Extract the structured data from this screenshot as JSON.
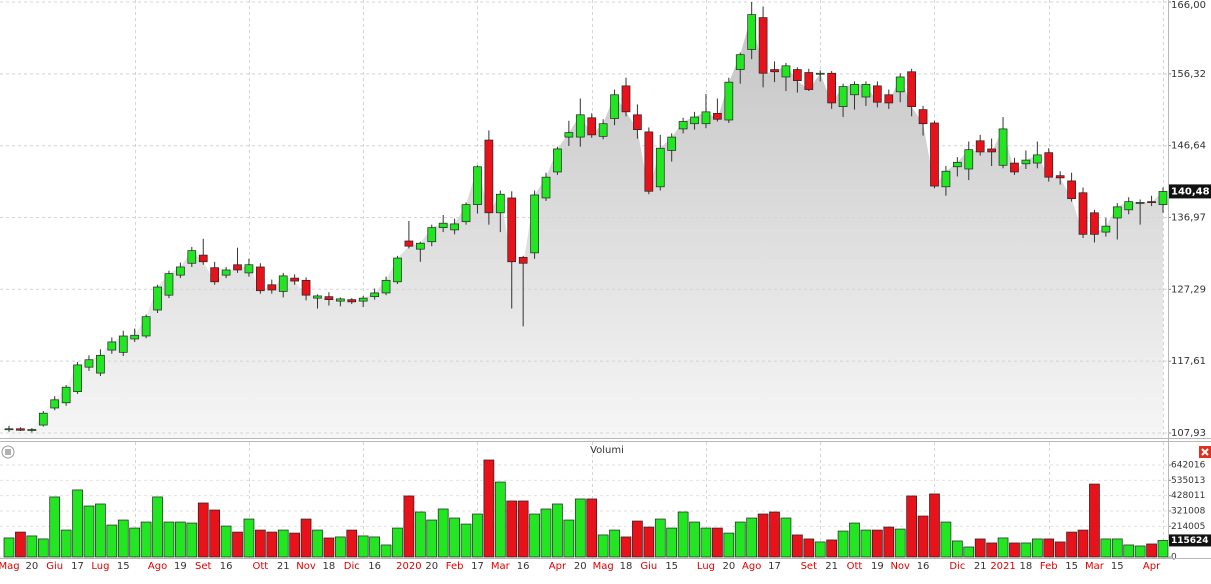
{
  "chart_data": [
    {
      "type": "candlestick",
      "open": [
        108.4,
        108.5,
        108.3,
        109.0,
        111.3,
        112.0,
        113.5,
        116.8,
        116.0,
        119.1,
        118.8,
        120.6,
        121.0,
        124.5,
        126.5,
        129.2,
        130.8,
        131.9,
        130.2,
        129.2,
        130.6,
        129.5,
        130.3,
        127.9,
        127.0,
        128.8,
        128.5,
        126.1,
        126.3,
        125.7,
        125.9,
        125.7,
        126.3,
        126.8,
        128.3,
        133.8,
        132.7,
        133.7,
        135.6,
        135.3,
        136.4,
        138.7,
        147.4,
        137.6,
        139.6,
        131.6,
        132.2,
        139.6,
        143.1,
        147.8,
        147.8,
        150.4,
        147.9,
        150.3,
        154.7,
        150.8,
        148.5,
        141.1,
        146.0,
        148.9,
        149.6,
        149.6,
        151.0,
        150.1,
        156.9,
        159.6,
        163.9,
        156.9,
        155.9,
        156.9,
        156.5,
        156.3,
        156.4,
        151.9,
        153.5,
        153.2,
        154.7,
        153.5,
        153.9,
        156.6,
        151.5,
        149.7,
        141.1,
        143.8,
        143.5,
        147.3,
        146.2,
        144.0,
        144.3,
        144.2,
        144.3,
        145.7,
        142.6,
        141.9,
        140.3,
        137.6,
        135.0,
        136.9,
        138.0,
        138.9,
        139.1,
        138.7
      ],
      "high": [
        108.9,
        108.7,
        108.6,
        110.9,
        112.9,
        114.4,
        117.5,
        118.4,
        119.2,
        120.8,
        121.7,
        122.0,
        123.9,
        127.9,
        129.8,
        130.9,
        133.0,
        134.1,
        131.0,
        130.3,
        132.9,
        131.4,
        130.8,
        128.6,
        129.5,
        129.3,
        128.9,
        126.6,
        126.9,
        126.2,
        126.1,
        126.4,
        127.4,
        129.0,
        131.8,
        136.5,
        133.7,
        136.0,
        137.3,
        136.8,
        139.0,
        144.0,
        148.7,
        140.6,
        140.5,
        131.8,
        140.6,
        143.0,
        146.5,
        150.0,
        153.0,
        151.0,
        150.2,
        154.2,
        155.8,
        152.2,
        149.1,
        148.1,
        148.3,
        150.4,
        151.2,
        153.6,
        153.0,
        155.8,
        159.2,
        166.0,
        165.4,
        158.0,
        157.8,
        157.2,
        157.0,
        156.8,
        156.7,
        155.0,
        155.3,
        155.3,
        155.3,
        154.2,
        156.4,
        157.0,
        152.0,
        150.0,
        143.9,
        145.1,
        147.2,
        148.1,
        147.6,
        150.5,
        145.0,
        146.0,
        147.2,
        146.3,
        143.2,
        143.0,
        141.0,
        138.0,
        136.9,
        138.9,
        139.7,
        139.4,
        139.9,
        141.0
      ],
      "low": [
        108.1,
        108.2,
        108.0,
        108.8,
        111.0,
        111.6,
        113.2,
        116.3,
        115.6,
        118.6,
        118.3,
        120.2,
        120.7,
        124.1,
        126.1,
        128.8,
        130.3,
        130.6,
        127.9,
        128.8,
        129.5,
        129.0,
        126.7,
        126.7,
        126.2,
        127.9,
        125.8,
        124.7,
        125.1,
        125.0,
        125.3,
        124.9,
        125.9,
        126.5,
        128.0,
        132.8,
        131.0,
        133.1,
        135.0,
        134.7,
        136.0,
        137.5,
        136.0,
        135.0,
        124.7,
        122.3,
        131.4,
        139.2,
        142.7,
        146.6,
        146.5,
        147.7,
        147.5,
        149.4,
        150.6,
        147.6,
        140.1,
        140.6,
        144.5,
        148.3,
        148.8,
        149.0,
        149.9,
        149.7,
        155.0,
        158.3,
        154.5,
        155.2,
        154.0,
        153.8,
        154.0,
        155.3,
        151.6,
        150.5,
        151.5,
        152.0,
        151.8,
        151.6,
        152.5,
        150.6,
        148.0,
        140.9,
        139.9,
        142.5,
        142.0,
        145.3,
        143.9,
        143.6,
        142.7,
        143.5,
        143.6,
        141.8,
        141.4,
        139.1,
        134.2,
        133.6,
        134.4,
        134.0,
        137.4,
        136.0,
        138.5,
        137.6
      ],
      "close": [
        108.5,
        108.3,
        108.4,
        110.6,
        112.4,
        114.1,
        117.1,
        117.8,
        118.4,
        120.2,
        121.0,
        121.1,
        123.6,
        127.6,
        129.4,
        130.3,
        132.5,
        131.0,
        128.3,
        129.9,
        129.9,
        130.6,
        127.1,
        127.2,
        129.1,
        128.4,
        126.5,
        126.4,
        125.9,
        126.0,
        125.6,
        126.1,
        126.8,
        128.5,
        131.5,
        133.1,
        133.5,
        135.6,
        136.2,
        136.1,
        138.7,
        143.8,
        137.6,
        140.1,
        131.0,
        130.8,
        140.0,
        142.4,
        146.2,
        148.4,
        150.8,
        148.1,
        149.6,
        153.5,
        151.2,
        148.8,
        140.5,
        146.3,
        147.8,
        149.9,
        150.5,
        151.2,
        150.2,
        155.2,
        158.9,
        164.3,
        156.4,
        156.6,
        157.4,
        155.4,
        154.2,
        156.4,
        152.4,
        154.6,
        154.9,
        154.9,
        152.5,
        152.4,
        155.9,
        151.9,
        149.6,
        141.2,
        143.2,
        144.4,
        146.1,
        145.8,
        145.8,
        148.9,
        143.1,
        144.7,
        145.4,
        142.4,
        142.3,
        139.5,
        134.7,
        134.7,
        135.8,
        138.4,
        139.1,
        139.0,
        139.0,
        140.48
      ],
      "last_close_label": "140,48",
      "ylim": [
        107.93,
        166.0
      ],
      "yticks": [
        {
          "value": 107.93,
          "label": "107,93"
        },
        {
          "value": 117.61,
          "label": "117,61"
        },
        {
          "value": 127.29,
          "label": "127,29"
        },
        {
          "value": 136.97,
          "label": "136,97"
        },
        {
          "value": 146.64,
          "label": "146,64"
        },
        {
          "value": 156.32,
          "label": "156,32"
        },
        {
          "value": 166.0,
          "label": "166,00"
        }
      ],
      "up_color": "#22e622",
      "down_color": "#e8121a",
      "grid": true
    },
    {
      "type": "bar",
      "title": "Volumi",
      "categories": [
        "Mag",
        null,
        "20",
        null,
        "Giu",
        null,
        "17",
        null,
        "Lug",
        null,
        "15",
        null,
        null,
        "Ago",
        null,
        "19",
        null,
        "Set",
        null,
        "16",
        null,
        null,
        "Ott",
        null,
        "21",
        null,
        "Nov",
        null,
        "18",
        null,
        "Dic",
        null,
        "16",
        null,
        null,
        "2020",
        null,
        "20",
        null,
        "Feb",
        null,
        "17",
        null,
        "Mar",
        null,
        "16",
        null,
        null,
        "Apr",
        null,
        "20",
        null,
        "Mag",
        null,
        "18",
        null,
        "Giu",
        null,
        "15",
        null,
        null,
        "Lug",
        null,
        "20",
        null,
        "Ago",
        null,
        "17",
        null,
        null,
        "Set",
        null,
        "21",
        null,
        "Ott",
        null,
        "19",
        null,
        "Nov",
        null,
        "16",
        null,
        null,
        "Dic",
        null,
        "21",
        null,
        "2021",
        null,
        "18",
        null,
        "Feb",
        null,
        "15",
        null,
        "Mar",
        null,
        "15",
        null,
        null,
        "Apr",
        null
      ],
      "values": [
        133000,
        174000,
        147000,
        126000,
        419000,
        188000,
        468000,
        356000,
        370000,
        223000,
        258000,
        202000,
        244000,
        419000,
        244000,
        244000,
        237000,
        377000,
        328000,
        216000,
        174000,
        265000,
        188000,
        174000,
        188000,
        167000,
        265000,
        188000,
        133000,
        140000,
        188000,
        147000,
        140000,
        84000,
        202000,
        426000,
        314000,
        258000,
        335000,
        272000,
        230000,
        300000,
        677000,
        523000,
        391000,
        391000,
        300000,
        335000,
        370000,
        258000,
        405000,
        405000,
        154000,
        188000,
        140000,
        251000,
        209000,
        265000,
        202000,
        314000,
        244000,
        202000,
        202000,
        167000,
        244000,
        272000,
        300000,
        314000,
        272000,
        154000,
        126000,
        105000,
        119000,
        181000,
        237000,
        188000,
        188000,
        209000,
        195000,
        426000,
        286000,
        440000,
        244000,
        112000,
        70000,
        126000,
        98000,
        133000,
        98000,
        98000,
        126000,
        126000,
        105000,
        174000,
        188000,
        509000,
        126000,
        126000,
        84000,
        77000,
        91000,
        115624
      ],
      "ylim": [
        0,
        697800
      ],
      "yticks": [
        0,
        214005,
        321008,
        428011,
        535013,
        642016
      ],
      "month_label_color": "#e00000",
      "day_label_color": "#333333",
      "grid": true
    }
  ]
}
